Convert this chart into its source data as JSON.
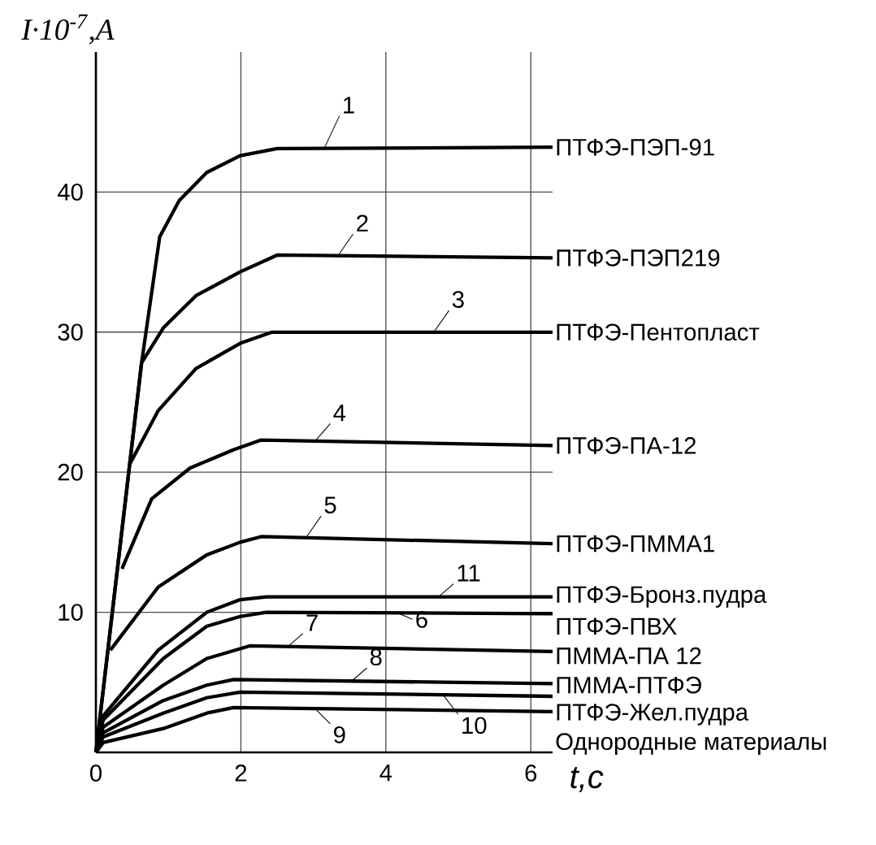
{
  "chart_data": {
    "type": "line",
    "xlabel": "t,c",
    "ylabel": "I·10$^{-7}$,A",
    "xlim": [
      0,
      6.3
    ],
    "ylim": [
      0,
      50
    ],
    "xticks": [
      0,
      2,
      4,
      6
    ],
    "yticks": [
      10,
      20,
      30,
      40
    ],
    "grid": true,
    "legend": false,
    "marker": "none",
    "line_style": "solid",
    "series": [
      {
        "name": "ПТФЭ-ПЭП-91",
        "color": "#000000",
        "x": [
          0,
          0.63,
          0.88,
          1.15,
          1.53,
          1.99,
          2.5,
          6.3
        ],
        "values": [
          0,
          27.8,
          36.8,
          39.4,
          41.4,
          42.6,
          43.1,
          43.2
        ]
      },
      {
        "name": "ПТФЭ-ПЭП219",
        "color": "#000000",
        "x": [
          0,
          0.63,
          0.93,
          1.38,
          1.99,
          2.5,
          6.3
        ],
        "values": [
          0,
          27.8,
          30.3,
          32.6,
          34.3,
          35.5,
          35.3
        ]
      },
      {
        "name": "ПТФЭ-Пентопласт",
        "color": "#000000",
        "x": [
          0.47,
          0.86,
          1.38,
          1.99,
          2.43,
          6.3
        ],
        "values": [
          20.6,
          24.4,
          27.4,
          29.2,
          30,
          30
        ]
      },
      {
        "name": "ПТФЭ-ПА-12",
        "color": "#000000",
        "x": [
          0.36,
          0.77,
          1.3,
          1.9,
          2.28,
          6.3
        ],
        "values": [
          13.1,
          18.1,
          20.3,
          21.6,
          22.3,
          21.9
        ]
      },
      {
        "name": "ПТФЭ-ПММА1",
        "color": "#000000",
        "x": [
          0.2,
          0.86,
          1.53,
          1.99,
          2.28,
          6.3
        ],
        "values": [
          7.3,
          11.8,
          14.1,
          15,
          15.4,
          14.9
        ]
      },
      {
        "name": "ПТФЭ-Бронз.пудра",
        "color": "#000000",
        "x": [
          0,
          0.1,
          0.86,
          1.53,
          1.99,
          2.35,
          6.3
        ],
        "values": [
          0,
          2.6,
          7.3,
          10,
          10.9,
          11.1,
          11.1
        ]
      },
      {
        "name": "ПТФЭ-ПВХ",
        "color": "#000000",
        "x": [
          0,
          0.1,
          0.93,
          1.53,
          1.99,
          2.35,
          6.3
        ],
        "values": [
          0,
          2.3,
          6.7,
          9,
          9.7,
          10,
          9.9
        ]
      },
      {
        "name": "ПММА-ПА 12",
        "color": "#000000",
        "x": [
          0,
          0.1,
          0.93,
          1.53,
          2.12,
          6.3
        ],
        "values": [
          0,
          1.8,
          4.8,
          6.7,
          7.6,
          7.2
        ]
      },
      {
        "name": "ПММА-ПТФЭ",
        "color": "#000000",
        "x": [
          0,
          0.1,
          0.93,
          1.53,
          1.9,
          6.3
        ],
        "values": [
          0,
          1.4,
          3.7,
          4.8,
          5.2,
          4.9
        ]
      },
      {
        "name": "ПТФЭ-Жел.пудра",
        "color": "#000000",
        "x": [
          0,
          0.1,
          0.93,
          1.53,
          1.99,
          6.3
        ],
        "values": [
          0,
          1.1,
          2.8,
          3.9,
          4.3,
          4
        ]
      },
      {
        "name": "Однородные материалы",
        "color": "#000000",
        "x": [
          0,
          0.1,
          0.93,
          1.53,
          1.9,
          6.3
        ],
        "values": [
          0,
          0.7,
          1.7,
          2.8,
          3.2,
          2.9
        ]
      }
    ],
    "annotations": [
      "1",
      "2",
      "3",
      "4",
      "5",
      "11",
      "6",
      "7",
      "8",
      "10",
      "9"
    ]
  }
}
